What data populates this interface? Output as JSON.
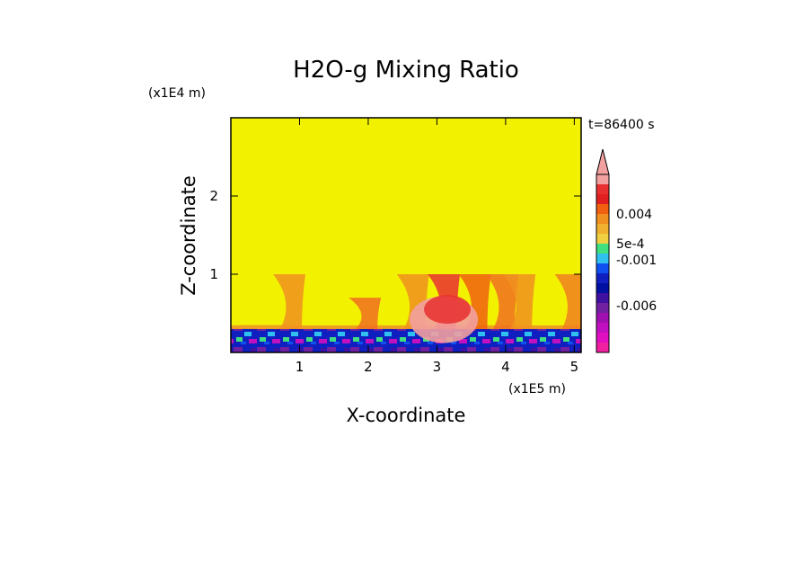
{
  "chart_data": {
    "type": "heatmap",
    "title": "H2O-g Mixing Ratio",
    "xlabel": "X-coordinate",
    "ylabel": "Z-coordinate",
    "x_multiplier": "(x1E5 m)",
    "y_multiplier": "(x1E4 m)",
    "time_stamp": "t=86400 s",
    "x_ticks": [
      "1",
      "2",
      "3",
      "4",
      "5"
    ],
    "y_ticks": [
      "1",
      "2"
    ],
    "xlim": [
      0,
      5.1
    ],
    "ylim": [
      0,
      3
    ],
    "colorbar": {
      "labels": [
        "0.004",
        "5e-4",
        "-0.001",
        "-0.006"
      ],
      "colors": [
        "#f2f200",
        "#f2a0a0",
        "#e83030",
        "#e02020",
        "#f06010",
        "#f09020",
        "#f0b030",
        "#f0d040",
        "#40e080",
        "#30c0f0",
        "#1050f0",
        "#1020c0",
        "#0010a0",
        "#4010a0",
        "#7020a0",
        "#a010b0",
        "#c010c0",
        "#e010c0",
        "#f020a0"
      ]
    },
    "field": {
      "background": "#f2f200",
      "surface_layer_top_z": 0.3,
      "plumes": [
        {
          "x": 0.5,
          "z_top": 0.35,
          "color": "#f0a020"
        },
        {
          "x": 0.85,
          "z_top": 1.0,
          "color": "#f09020"
        },
        {
          "x": 1.95,
          "z_top": 0.7,
          "color": "#f07020"
        },
        {
          "x": 2.65,
          "z_top": 1.0,
          "color": "#f09020"
        },
        {
          "x": 3.1,
          "z_top": 1.0,
          "color": "#e83030"
        },
        {
          "x": 3.55,
          "z_top": 1.0,
          "color": "#f06010"
        },
        {
          "x": 3.95,
          "z_top": 1.0,
          "color": "#f07020"
        },
        {
          "x": 4.2,
          "z_top": 1.0,
          "color": "#f09020"
        },
        {
          "x": 4.95,
          "z_top": 1.0,
          "color": "#f08020"
        }
      ]
    }
  }
}
